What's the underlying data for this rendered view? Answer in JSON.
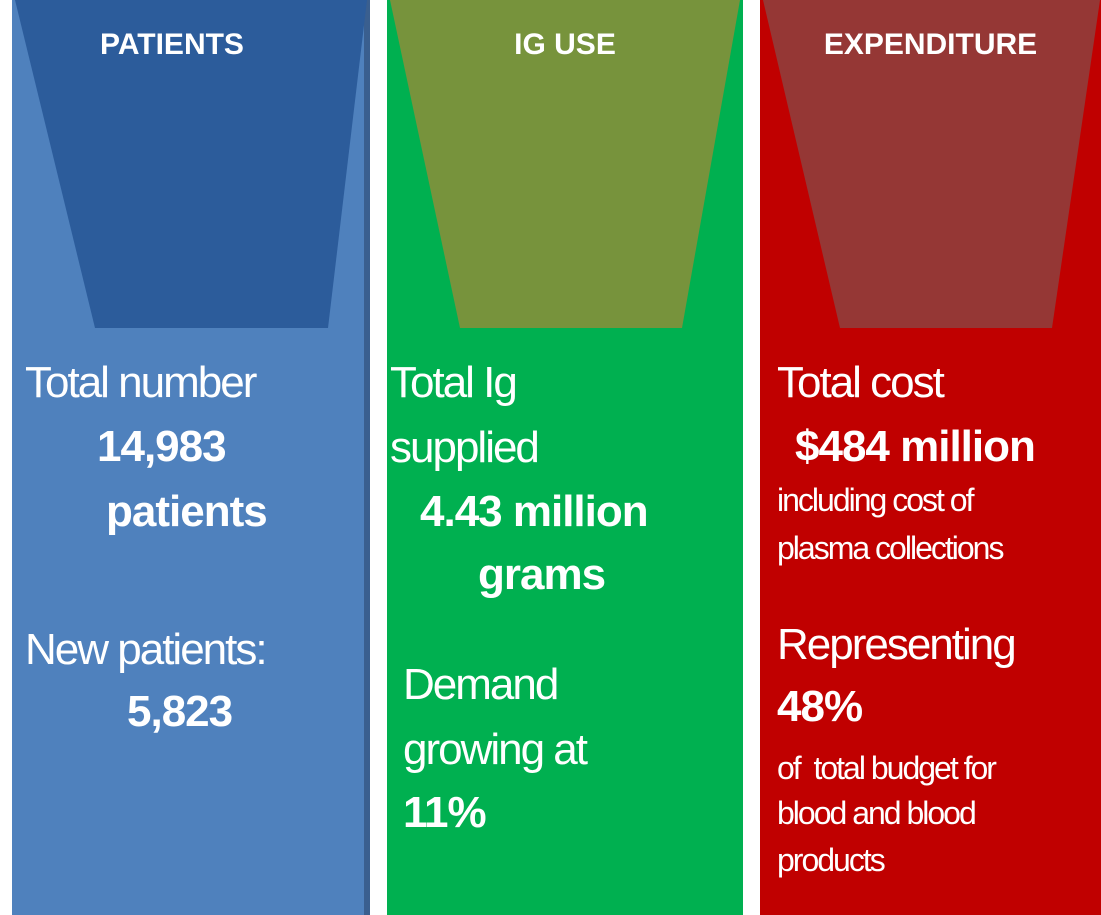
{
  "panels": [
    {
      "heading": "PATIENTS",
      "lines": [
        "Total number",
        "14,983",
        "patients",
        "New patients:",
        "5,823"
      ]
    },
    {
      "heading": "IG USE",
      "lines": [
        "Total Ig",
        "supplied",
        "4.43 million",
        "grams",
        "Demand",
        "growing at",
        "11%"
      ]
    },
    {
      "heading": "EXPENDITURE",
      "lines": [
        "Total cost",
        "$484 million",
        "including cost of",
        "plasma collections",
        "Representing",
        "48%",
        "of  total budget for",
        "blood and blood",
        "products"
      ]
    }
  ]
}
